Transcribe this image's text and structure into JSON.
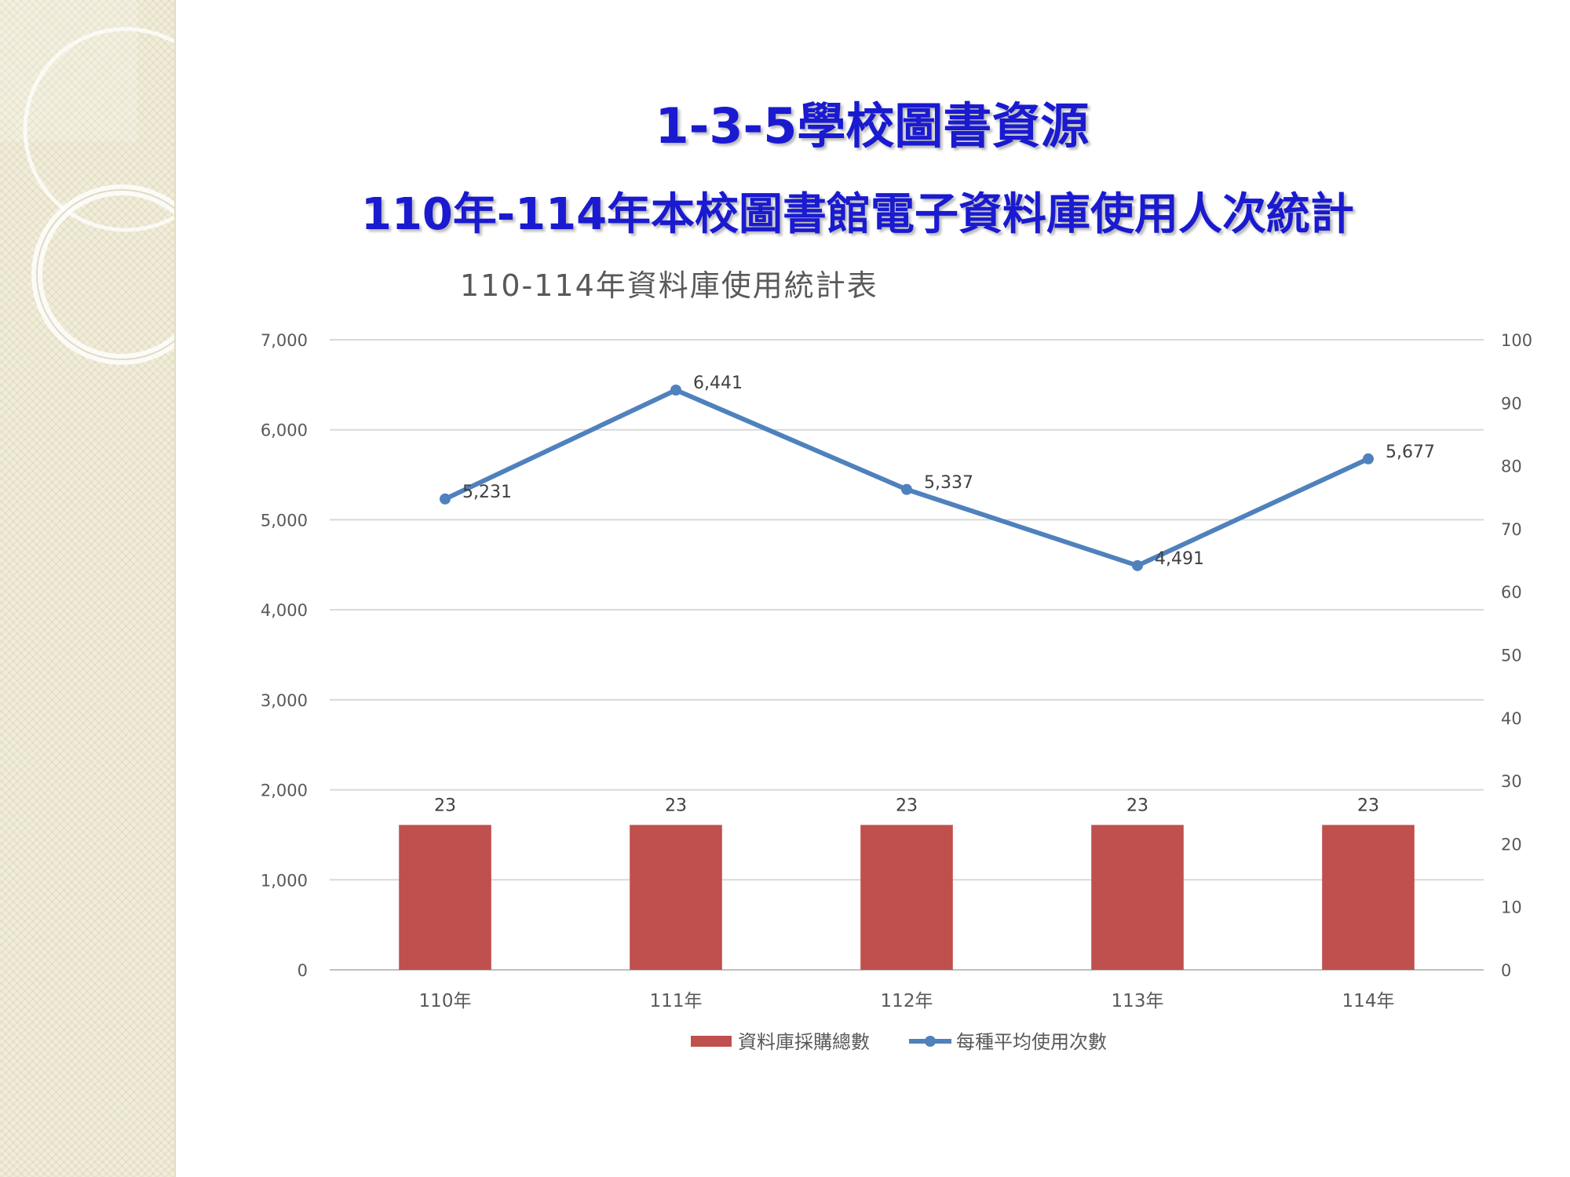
{
  "slide": {
    "title_line1": "1-3-5學校圖書資源",
    "title_line2": "110年-114年本校圖書館電子資料庫使用人次統計"
  },
  "colors": {
    "title": "#1a1ad0",
    "bar": "#c0504d",
    "line": "#4f81bd",
    "panel": "#f1edda"
  },
  "chart_data": {
    "type": "bar",
    "title": "110-114年資料庫使用統計表",
    "categories": [
      "110年",
      "111年",
      "112年",
      "113年",
      "114年"
    ],
    "y_left": {
      "ticks": [
        "0",
        "1,000",
        "2,000",
        "3,000",
        "4,000",
        "5,000",
        "6,000",
        "7,000"
      ],
      "range": [
        0,
        7000
      ]
    },
    "y_right": {
      "ticks": [
        "0",
        "10",
        "20",
        "30",
        "40",
        "50",
        "60",
        "70",
        "80",
        "90",
        "100"
      ],
      "range": [
        0,
        100
      ]
    },
    "series": [
      {
        "name": "資料庫採購總數",
        "type": "bar",
        "axis": "right",
        "values": [
          23,
          23,
          23,
          23,
          23
        ],
        "labels": [
          "23",
          "23",
          "23",
          "23",
          "23"
        ]
      },
      {
        "name": "每種平均使用次數",
        "type": "line",
        "axis": "left",
        "values": [
          5231,
          6441,
          5337,
          4491,
          5677
        ],
        "labels": [
          "5,231",
          "6,441",
          "5,337",
          "4,491",
          "5,677"
        ]
      }
    ],
    "grid": true,
    "legend": "bottom"
  }
}
